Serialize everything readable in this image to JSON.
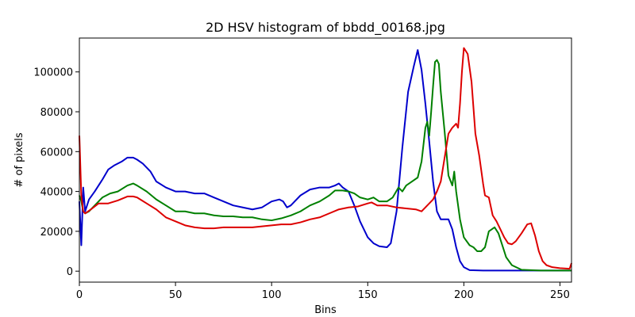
{
  "chart_data": {
    "type": "line",
    "title": "2D HSV histogram of bbdd_00168.jpg",
    "xlabel": "Bins",
    "ylabel": "# of pixels",
    "xlim": [
      0,
      256
    ],
    "ylim": [
      -5500,
      117000
    ],
    "x_ticks": [
      0,
      50,
      100,
      150,
      200,
      250
    ],
    "x_tick_labels": [
      "0",
      "50",
      "100",
      "150",
      "200",
      "250"
    ],
    "y_ticks": [
      0,
      20000,
      40000,
      60000,
      80000,
      100000
    ],
    "y_tick_labels": [
      "0",
      "20000",
      "40000",
      "60000",
      "80000",
      "100000"
    ],
    "grid": false,
    "legend": "none",
    "series": [
      {
        "color": "#0000cc",
        "points": [
          [
            0,
            35000
          ],
          [
            1,
            13000
          ],
          [
            2,
            42000
          ],
          [
            3,
            30000
          ],
          [
            5,
            36000
          ],
          [
            8,
            40000
          ],
          [
            12,
            46000
          ],
          [
            15,
            51000
          ],
          [
            18,
            53000
          ],
          [
            22,
            55000
          ],
          [
            25,
            57000
          ],
          [
            28,
            57000
          ],
          [
            30,
            56000
          ],
          [
            33,
            54000
          ],
          [
            37,
            50000
          ],
          [
            40,
            45000
          ],
          [
            45,
            42000
          ],
          [
            50,
            40000
          ],
          [
            55,
            40000
          ],
          [
            60,
            39000
          ],
          [
            65,
            39000
          ],
          [
            70,
            37000
          ],
          [
            75,
            35000
          ],
          [
            80,
            33000
          ],
          [
            85,
            32000
          ],
          [
            90,
            31000
          ],
          [
            95,
            32000
          ],
          [
            100,
            35000
          ],
          [
            104,
            36000
          ],
          [
            106,
            35000
          ],
          [
            108,
            32000
          ],
          [
            110,
            33000
          ],
          [
            115,
            38000
          ],
          [
            120,
            41000
          ],
          [
            125,
            42000
          ],
          [
            130,
            42000
          ],
          [
            133,
            43000
          ],
          [
            135,
            44000
          ],
          [
            137,
            42000
          ],
          [
            140,
            40000
          ],
          [
            143,
            33000
          ],
          [
            146,
            25000
          ],
          [
            150,
            17000
          ],
          [
            153,
            14000
          ],
          [
            156,
            12500
          ],
          [
            160,
            12000
          ],
          [
            162,
            14000
          ],
          [
            165,
            30000
          ],
          [
            168,
            62000
          ],
          [
            171,
            90000
          ],
          [
            174,
            103000
          ],
          [
            176,
            111000
          ],
          [
            178,
            101000
          ],
          [
            180,
            84000
          ],
          [
            182,
            65000
          ],
          [
            184,
            45000
          ],
          [
            186,
            30000
          ],
          [
            188,
            26000
          ],
          [
            190,
            26000
          ],
          [
            192,
            26000
          ],
          [
            194,
            21000
          ],
          [
            196,
            12000
          ],
          [
            198,
            5000
          ],
          [
            200,
            2000
          ],
          [
            203,
            500
          ],
          [
            210,
            300
          ],
          [
            220,
            300
          ],
          [
            240,
            300
          ],
          [
            256,
            300
          ]
        ]
      },
      {
        "color": "#008000",
        "points": [
          [
            0,
            38000
          ],
          [
            1,
            35000
          ],
          [
            2,
            30000
          ],
          [
            3,
            29000
          ],
          [
            5,
            30000
          ],
          [
            8,
            33000
          ],
          [
            12,
            37000
          ],
          [
            16,
            39000
          ],
          [
            20,
            40000
          ],
          [
            25,
            43000
          ],
          [
            28,
            44000
          ],
          [
            30,
            43000
          ],
          [
            35,
            40000
          ],
          [
            40,
            36000
          ],
          [
            45,
            33000
          ],
          [
            50,
            30000
          ],
          [
            55,
            30000
          ],
          [
            60,
            29000
          ],
          [
            65,
            29000
          ],
          [
            70,
            28000
          ],
          [
            75,
            27500
          ],
          [
            80,
            27500
          ],
          [
            85,
            27000
          ],
          [
            90,
            27000
          ],
          [
            95,
            26000
          ],
          [
            100,
            25500
          ],
          [
            105,
            26500
          ],
          [
            110,
            28000
          ],
          [
            115,
            30000
          ],
          [
            120,
            33000
          ],
          [
            125,
            35000
          ],
          [
            130,
            38000
          ],
          [
            133,
            40500
          ],
          [
            137,
            40500
          ],
          [
            140,
            40000
          ],
          [
            143,
            39000
          ],
          [
            146,
            37000
          ],
          [
            150,
            36000
          ],
          [
            153,
            37000
          ],
          [
            156,
            35000
          ],
          [
            160,
            35000
          ],
          [
            163,
            37000
          ],
          [
            166,
            42000
          ],
          [
            168,
            40000
          ],
          [
            170,
            43000
          ],
          [
            173,
            45000
          ],
          [
            176,
            47000
          ],
          [
            178,
            55000
          ],
          [
            180,
            72000
          ],
          [
            181,
            75000
          ],
          [
            182,
            68000
          ],
          [
            183,
            80000
          ],
          [
            184,
            93000
          ],
          [
            185,
            105000
          ],
          [
            186,
            106000
          ],
          [
            187,
            104000
          ],
          [
            188,
            90000
          ],
          [
            190,
            70000
          ],
          [
            192,
            48000
          ],
          [
            194,
            43000
          ],
          [
            195,
            50000
          ],
          [
            196,
            40000
          ],
          [
            198,
            26000
          ],
          [
            200,
            17000
          ],
          [
            203,
            13000
          ],
          [
            205,
            12000
          ],
          [
            207,
            10000
          ],
          [
            209,
            10000
          ],
          [
            211,
            12000
          ],
          [
            213,
            20000
          ],
          [
            216,
            22000
          ],
          [
            218,
            19000
          ],
          [
            220,
            13000
          ],
          [
            222,
            7000
          ],
          [
            225,
            3000
          ],
          [
            230,
            700
          ],
          [
            240,
            300
          ],
          [
            256,
            300
          ]
        ]
      },
      {
        "color": "#dd0000",
        "points": [
          [
            0,
            68000
          ],
          [
            1,
            38000
          ],
          [
            2,
            30000
          ],
          [
            3,
            29000
          ],
          [
            6,
            31000
          ],
          [
            10,
            34000
          ],
          [
            15,
            34000
          ],
          [
            20,
            35500
          ],
          [
            25,
            37500
          ],
          [
            28,
            37500
          ],
          [
            30,
            37000
          ],
          [
            35,
            34000
          ],
          [
            40,
            31000
          ],
          [
            45,
            27000
          ],
          [
            50,
            25000
          ],
          [
            55,
            23000
          ],
          [
            60,
            22000
          ],
          [
            65,
            21500
          ],
          [
            70,
            21500
          ],
          [
            75,
            22000
          ],
          [
            80,
            22000
          ],
          [
            85,
            22000
          ],
          [
            90,
            22000
          ],
          [
            95,
            22500
          ],
          [
            100,
            23000
          ],
          [
            105,
            23500
          ],
          [
            110,
            23500
          ],
          [
            115,
            24500
          ],
          [
            120,
            26000
          ],
          [
            125,
            27000
          ],
          [
            130,
            29000
          ],
          [
            135,
            31000
          ],
          [
            140,
            32000
          ],
          [
            145,
            32500
          ],
          [
            150,
            34000
          ],
          [
            152,
            34500
          ],
          [
            155,
            33000
          ],
          [
            160,
            33000
          ],
          [
            165,
            32000
          ],
          [
            170,
            31500
          ],
          [
            175,
            31000
          ],
          [
            178,
            30000
          ],
          [
            181,
            33000
          ],
          [
            184,
            36000
          ],
          [
            186,
            40000
          ],
          [
            188,
            45000
          ],
          [
            190,
            57000
          ],
          [
            192,
            69000
          ],
          [
            194,
            72000
          ],
          [
            196,
            74000
          ],
          [
            197,
            72000
          ],
          [
            198,
            84000
          ],
          [
            199,
            100000
          ],
          [
            200,
            112000
          ],
          [
            202,
            109000
          ],
          [
            204,
            95000
          ],
          [
            206,
            69000
          ],
          [
            208,
            58000
          ],
          [
            210,
            44000
          ],
          [
            211,
            38000
          ],
          [
            213,
            37000
          ],
          [
            215,
            28000
          ],
          [
            217,
            25000
          ],
          [
            219,
            21000
          ],
          [
            221,
            17000
          ],
          [
            223,
            14000
          ],
          [
            225,
            13500
          ],
          [
            227,
            15000
          ],
          [
            230,
            19000
          ],
          [
            233,
            23500
          ],
          [
            235,
            24000
          ],
          [
            237,
            18000
          ],
          [
            239,
            10000
          ],
          [
            241,
            5000
          ],
          [
            243,
            3000
          ],
          [
            246,
            2000
          ],
          [
            250,
            1500
          ],
          [
            255,
            1200
          ],
          [
            256,
            4000
          ]
        ]
      }
    ]
  }
}
